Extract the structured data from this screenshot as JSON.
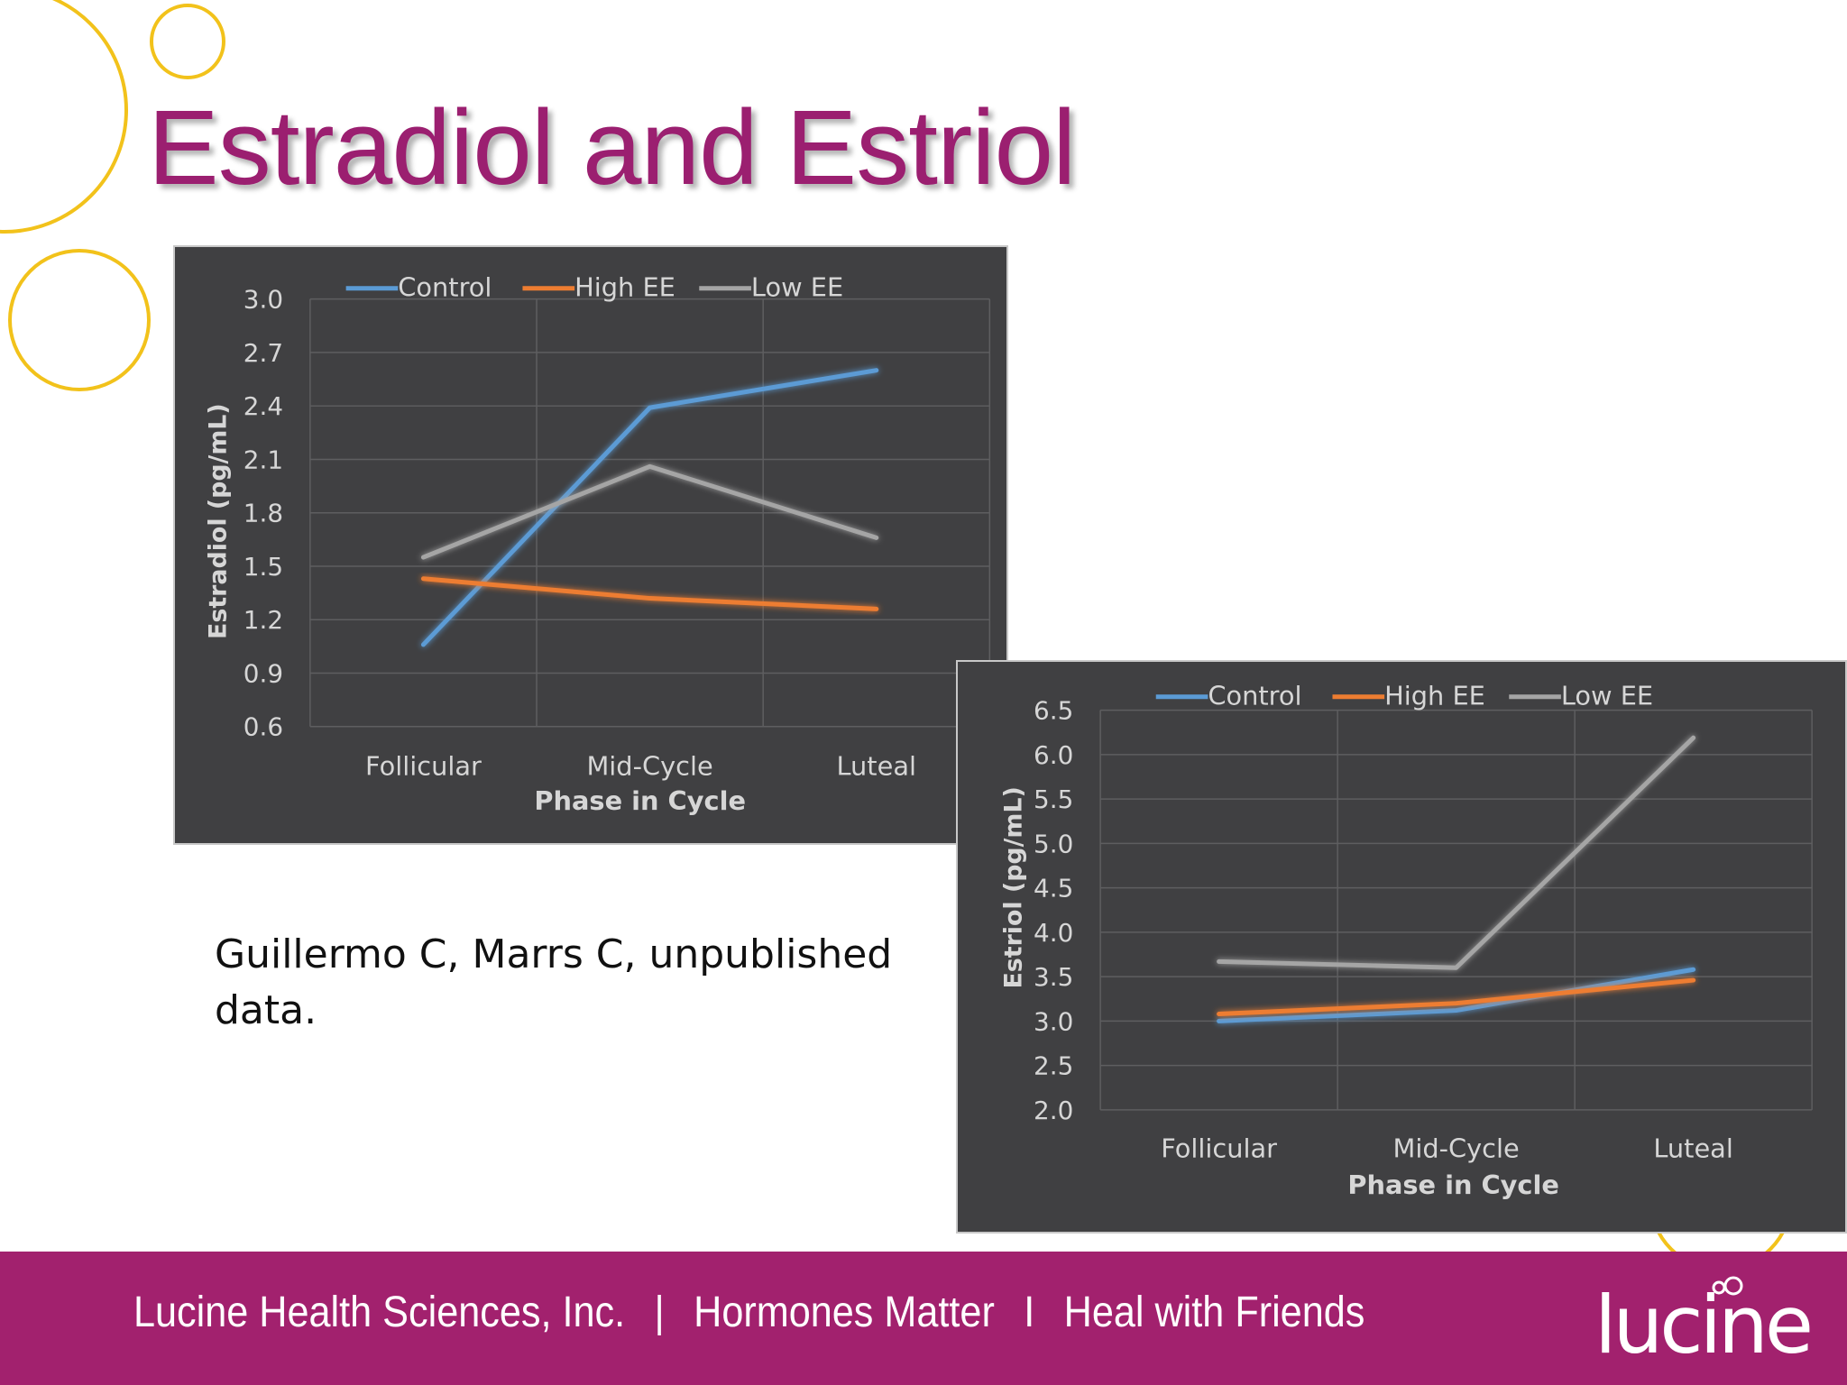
{
  "title": "Estradiol and Estriol",
  "citation": "Guillermo C, Marrs C, unpublished data.",
  "footer": {
    "company": "Lucine Health Sciences, Inc.",
    "sep1": "|",
    "item2": "Hormones Matter",
    "sep2": "I",
    "item3": "Heal with Friends",
    "logo_text": "lucine"
  },
  "colors": {
    "brand": "#9b1f70",
    "footer_bg": "#a2216e",
    "decor_ring": "#f2c21b",
    "chart_bg": "#404042",
    "control": "#5b9bd5",
    "high_ee": "#ed7d31",
    "low_ee": "#a5a5a5"
  },
  "chart_data": [
    {
      "type": "line",
      "xlabel": "Phase in Cycle",
      "ylabel": "Estradiol (pg/mL)",
      "categories": [
        "Follicular",
        "Mid-Cycle",
        "Luteal"
      ],
      "ylim": [
        0.6,
        3.0
      ],
      "yticks": [
        "3.0",
        "2.7",
        "2.4",
        "2.1",
        "1.8",
        "1.5",
        "1.2",
        "0.9",
        "0.6"
      ],
      "grid": true,
      "legend": "top",
      "series": [
        {
          "name": "Control",
          "color": "#5b9bd5",
          "values": [
            1.06,
            2.39,
            2.6
          ]
        },
        {
          "name": "High EE",
          "color": "#ed7d31",
          "values": [
            1.43,
            1.32,
            1.26
          ]
        },
        {
          "name": "Low EE",
          "color": "#a5a5a5",
          "values": [
            1.55,
            2.06,
            1.66
          ]
        }
      ]
    },
    {
      "type": "line",
      "xlabel": "Phase in Cycle",
      "ylabel": "Estriol (pg/mL)",
      "categories": [
        "Follicular",
        "Mid-Cycle",
        "Luteal"
      ],
      "ylim": [
        2.0,
        6.5
      ],
      "yticks": [
        "6.5",
        "6.0",
        "5.5",
        "5.0",
        "4.5",
        "4.0",
        "3.5",
        "3.0",
        "2.5",
        "2.0"
      ],
      "grid": true,
      "legend": "top",
      "series": [
        {
          "name": "Control",
          "color": "#5b9bd5",
          "values": [
            3.0,
            3.12,
            3.58
          ]
        },
        {
          "name": "High EE",
          "color": "#ed7d31",
          "values": [
            3.08,
            3.2,
            3.46
          ]
        },
        {
          "name": "Low EE",
          "color": "#a5a5a5",
          "values": [
            3.67,
            3.6,
            6.19
          ]
        }
      ]
    }
  ]
}
